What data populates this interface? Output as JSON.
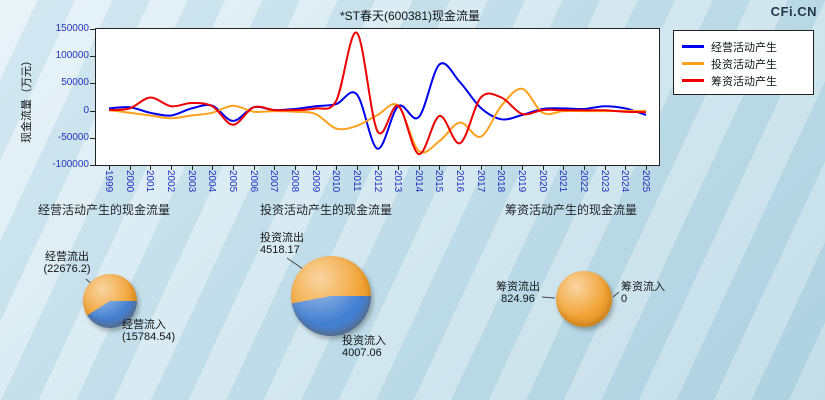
{
  "watermark": "CFi.CN",
  "chart_data": [
    {
      "type": "line",
      "title": "*ST春天(600381)现金流量",
      "ylabel": "现金流量（万元）",
      "ylim": [
        -100000,
        150000
      ],
      "y_ticks": [
        150000,
        100000,
        50000,
        0,
        -50000,
        -100000
      ],
      "legend_position": "top-right",
      "grid": false,
      "x": [
        "1999",
        "2000",
        "2001",
        "2002",
        "2003",
        "2004",
        "2005",
        "2006",
        "2007",
        "2008",
        "2009",
        "2010",
        "2011",
        "2012",
        "2013",
        "2014",
        "2015",
        "2016",
        "2017",
        "2018",
        "2019",
        "2020",
        "2021",
        "2022",
        "2023",
        "2024",
        "2025"
      ],
      "series": [
        {
          "name": "经营活动产生",
          "color": "#0000ee",
          "values": [
            4000,
            6000,
            -4000,
            -9000,
            4000,
            9000,
            -19000,
            6000,
            1000,
            3000,
            8000,
            12000,
            30000,
            -70000,
            8000,
            -12000,
            85000,
            52000,
            5000,
            -16000,
            -8000,
            3000,
            4000,
            3000,
            8000,
            4000,
            -8000
          ]
        },
        {
          "name": "投资活动产生",
          "color": "#ffa11d",
          "values": [
            1000,
            -4000,
            -9000,
            -14000,
            -9000,
            -4000,
            9000,
            -2000,
            -1000,
            -2000,
            -6000,
            -33000,
            -28000,
            -8000,
            9000,
            -74000,
            -56000,
            -22000,
            -48000,
            9000,
            40000,
            -4000,
            -1000,
            -1000,
            -1000,
            -500,
            -500
          ]
        },
        {
          "name": "筹资活动产生",
          "color": "#ee0000",
          "values": [
            1000,
            4000,
            24000,
            8000,
            14000,
            8000,
            -26000,
            6000,
            1000,
            1000,
            4000,
            18000,
            143000,
            -38000,
            9000,
            -80000,
            -10000,
            -60000,
            24000,
            24000,
            -6000,
            1000,
            1000,
            500,
            500,
            -2000,
            -3000
          ]
        }
      ]
    },
    {
      "type": "pie",
      "title": "经营活动产生的现金流量",
      "slices": [
        {
          "label": "经营流出",
          "value": 22676.2,
          "value_text": "(22676.2)",
          "color": "#f2a231"
        },
        {
          "label": "经营流入",
          "value": 15784.54,
          "value_text": "(15784.54)",
          "color": "#4480d2"
        }
      ]
    },
    {
      "type": "pie",
      "title": "投资活动产生的现金流量",
      "slices": [
        {
          "label": "投资流出",
          "value": 4518.17,
          "value_text": "4518.17",
          "color": "#f2a231"
        },
        {
          "label": "投资流入",
          "value": 4007.06,
          "value_text": "4007.06",
          "color": "#4480d2"
        }
      ]
    },
    {
      "type": "pie",
      "title": "筹资活动产生的现金流量",
      "slices": [
        {
          "label": "筹资流出",
          "value": 824.96,
          "value_text": "824.96",
          "color": "#f2a231"
        },
        {
          "label": "筹资流入",
          "value": 0,
          "value_text": "0",
          "color": "#4480d2"
        }
      ]
    }
  ]
}
